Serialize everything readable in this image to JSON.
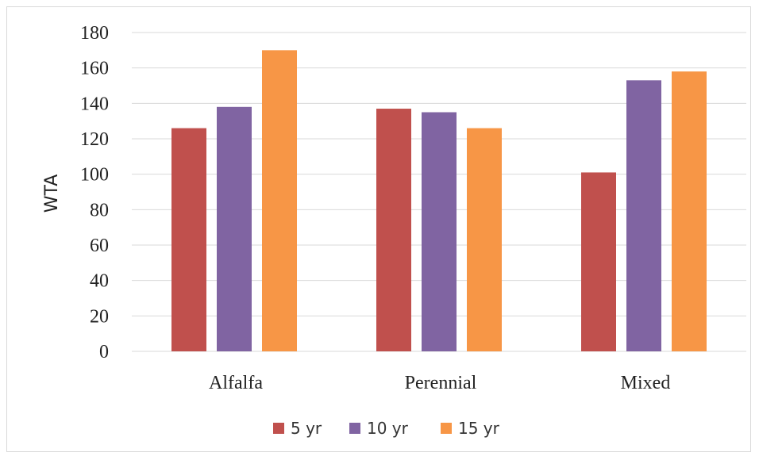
{
  "chart_data": {
    "type": "bar",
    "title": "",
    "xlabel": "",
    "ylabel": "WTA",
    "ylim": [
      0,
      180
    ],
    "yticks": [
      0,
      20,
      40,
      60,
      80,
      100,
      120,
      140,
      160,
      180
    ],
    "grid": true,
    "legend_position": "bottom",
    "categories": [
      "Alfalfa",
      "Perennial",
      "Mixed"
    ],
    "series": [
      {
        "name": "5 yr",
        "color": "#c0504d",
        "values": [
          126,
          137,
          101
        ]
      },
      {
        "name": "10 yr",
        "color": "#8064a2",
        "values": [
          138,
          135,
          153
        ]
      },
      {
        "name": "15 yr",
        "color": "#f79646",
        "values": [
          170,
          126,
          158
        ]
      }
    ]
  }
}
